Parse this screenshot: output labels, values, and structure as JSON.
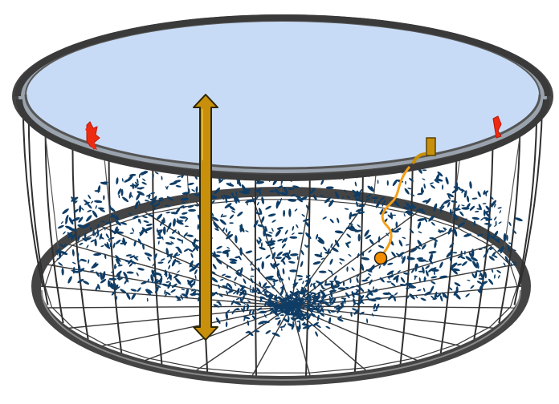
{
  "diagram": {
    "subject": "fish-cage-net-pen",
    "colors": {
      "rim": "#444444",
      "rim_highlight": "#8a8a8a",
      "water_surface": "#c8dbf6",
      "net_lines": "#2f2f2f",
      "fish": "#0f3d66",
      "depth_arrow_fill": "#c8900a",
      "depth_arrow_stroke": "#3a3000",
      "sensor_cable": "#f5a018",
      "sensor_float": "#f28c00",
      "attachment_marker": "#ee2b10",
      "mount_post": "#b5860e"
    },
    "icons": [
      "double-headed-depth-arrow-icon",
      "sensor-float-icon",
      "rim-attachment-marker-icon"
    ]
  }
}
